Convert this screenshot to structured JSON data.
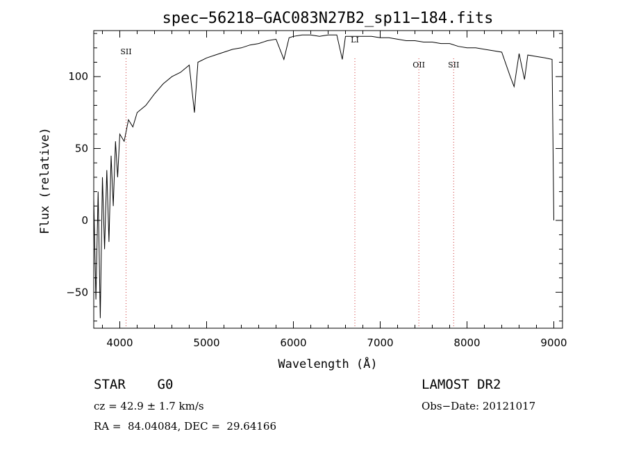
{
  "chart_data": {
    "type": "line",
    "title": "spec−56218−GAC083N27B2_sp11−184.fits",
    "xlabel": "Wavelength (Å)",
    "ylabel": "Flux (relative)",
    "xlim": [
      3700,
      9100
    ],
    "ylim": [
      -75,
      132
    ],
    "x_ticks": [
      4000,
      5000,
      6000,
      7000,
      8000,
      9000
    ],
    "y_ticks": [
      -50,
      0,
      50,
      100
    ],
    "y_tick_labels": [
      "−50",
      "0",
      "50",
      "100"
    ],
    "grid": false,
    "series": [
      {
        "x": [
          3700,
          3725,
          3750,
          3775,
          3800,
          3825,
          3850,
          3875,
          3900,
          3925,
          3950,
          3975,
          4000,
          4050,
          4100,
          4150,
          4200,
          4300,
          4400,
          4500,
          4600,
          4700,
          4800,
          4860,
          4900,
          5000,
          5100,
          5200,
          5300,
          5400,
          5500,
          5600,
          5700,
          5800,
          5890,
          5950,
          6000,
          6100,
          6200,
          6300,
          6400,
          6500,
          6563,
          6600,
          6700,
          6800,
          6900,
          7000,
          7100,
          7200,
          7300,
          7400,
          7500,
          7600,
          7700,
          7800,
          7900,
          8000,
          8100,
          8200,
          8300,
          8400,
          8498,
          8542,
          8600,
          8662,
          8700,
          8800,
          8900,
          8980,
          9000
        ],
        "y": [
          15,
          -55,
          20,
          -68,
          30,
          -20,
          35,
          -15,
          45,
          10,
          55,
          30,
          60,
          55,
          70,
          65,
          75,
          80,
          88,
          95,
          100,
          103,
          108,
          75,
          110,
          113,
          115,
          117,
          119,
          120,
          122,
          123,
          125,
          126,
          112,
          127,
          128,
          129,
          129,
          128,
          129,
          129,
          112,
          128,
          128,
          128,
          128,
          127,
          127,
          126,
          125,
          125,
          124,
          124,
          123,
          123,
          121,
          120,
          120,
          119,
          118,
          117,
          100,
          93,
          116,
          98,
          115,
          114,
          113,
          112,
          0
        ]
      }
    ],
    "line_markers": [
      {
        "label": "SII",
        "x": 4072
      },
      {
        "label": "LI",
        "x": 6708
      },
      {
        "label": "OII",
        "x": 7445
      },
      {
        "label": "SII",
        "x": 7846
      }
    ]
  },
  "info": {
    "classification": "STAR    G0",
    "survey": "LAMOST DR2",
    "cz": "cz = 42.9 ± 1.7 km/s",
    "obs_date": "Obs−Date: 20121017",
    "coords": "RA =  84.04084, DEC =  29.64166"
  }
}
